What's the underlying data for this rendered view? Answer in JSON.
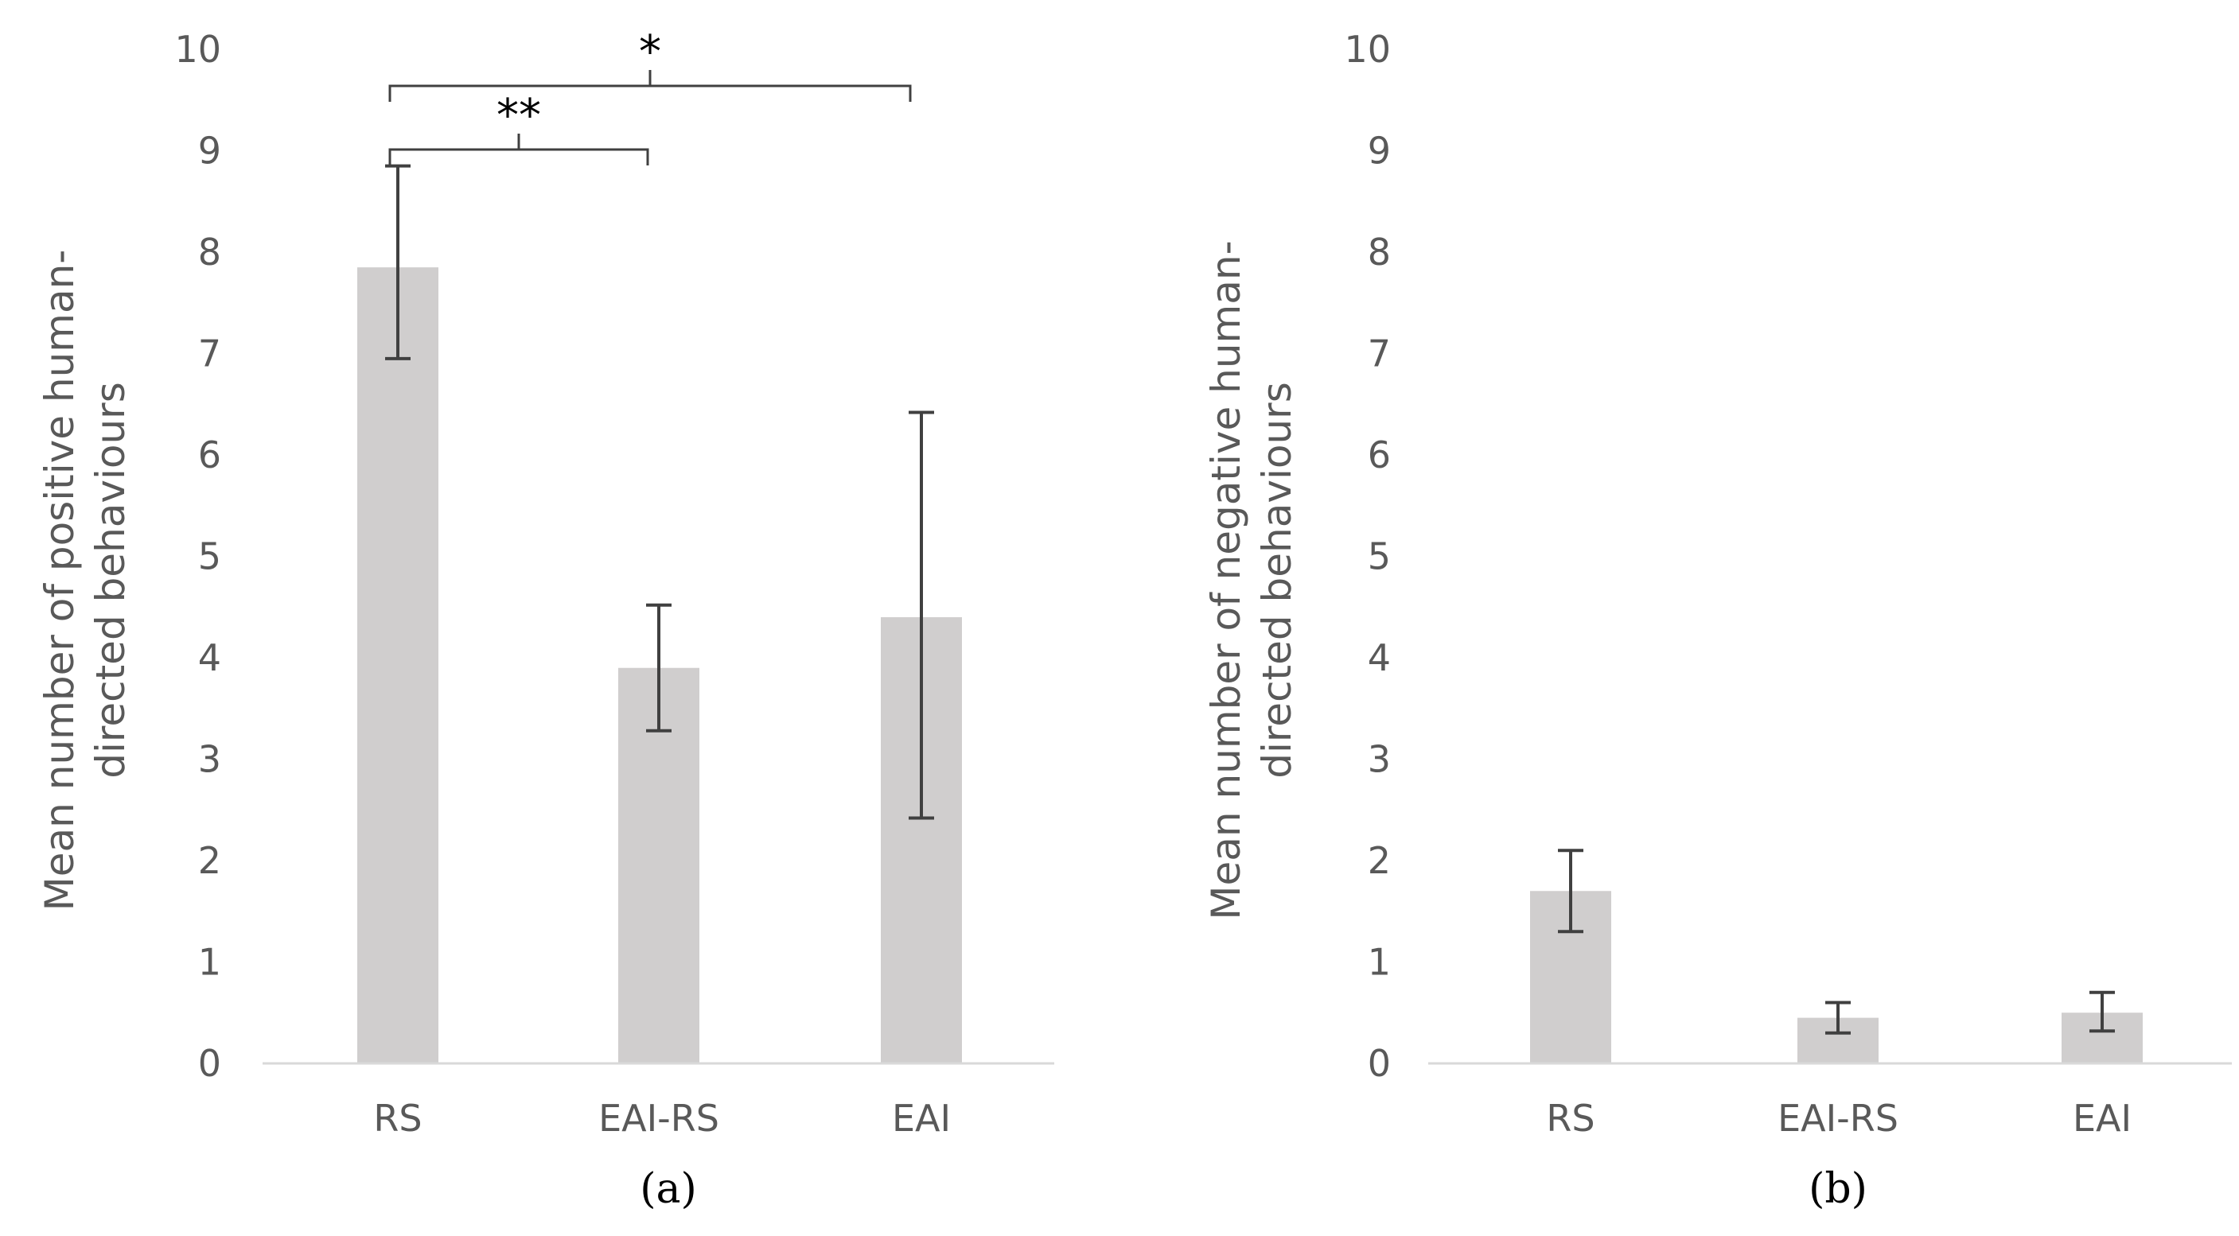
{
  "chart_data": [
    {
      "type": "bar",
      "panel_label": "(a)",
      "categories": [
        "RS",
        "EAI-RS",
        "EAI"
      ],
      "values": [
        7.85,
        3.9,
        4.4
      ],
      "error_low": [
        6.95,
        3.28,
        2.42
      ],
      "error_high": [
        8.85,
        4.52,
        6.42
      ],
      "ylabel_lines": [
        "Mean number of positive human-",
        "directed behaviours"
      ],
      "ylim": [
        0,
        10
      ],
      "yticks": [
        0,
        1,
        2,
        3,
        4,
        5,
        6,
        7,
        8,
        9,
        10
      ],
      "bar_color": "#d0cece",
      "grid": false,
      "significance": [
        {
          "from": "RS",
          "to": "EAI-RS",
          "label": "**"
        },
        {
          "from": "RS",
          "to": "EAI",
          "label": "*"
        }
      ]
    },
    {
      "type": "bar",
      "panel_label": "(b)",
      "categories": [
        "RS",
        "EAI-RS",
        "EAI"
      ],
      "values": [
        1.7,
        0.45,
        0.5
      ],
      "error_low": [
        1.3,
        0.3,
        0.32
      ],
      "error_high": [
        2.1,
        0.6,
        0.7
      ],
      "ylabel_lines": [
        "Mean number of negative human-",
        "directed behaviours"
      ],
      "ylim": [
        0,
        10
      ],
      "yticks": [
        0,
        1,
        2,
        3,
        4,
        5,
        6,
        7,
        8,
        9,
        10
      ],
      "bar_color": "#d0cece",
      "grid": false,
      "significance": []
    }
  ]
}
